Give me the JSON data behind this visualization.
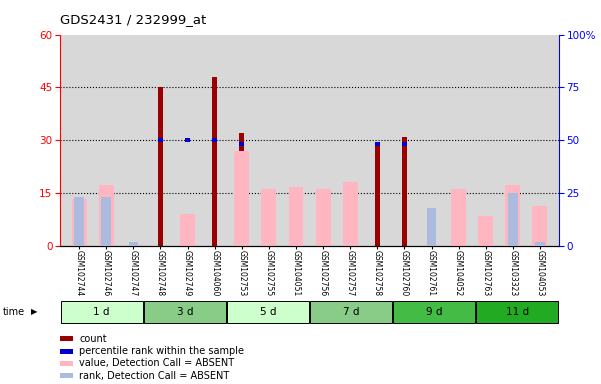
{
  "title": "GDS2431 / 232999_at",
  "samples": [
    "GSM102744",
    "GSM102746",
    "GSM102747",
    "GSM102748",
    "GSM102749",
    "GSM104060",
    "GSM102753",
    "GSM102755",
    "GSM104051",
    "GSM102756",
    "GSM102757",
    "GSM102758",
    "GSM102760",
    "GSM102761",
    "GSM104052",
    "GSM102763",
    "GSM103323",
    "GSM104053"
  ],
  "time_groups": [
    {
      "label": "1 d",
      "start": 0,
      "end": 3
    },
    {
      "label": "3 d",
      "start": 3,
      "end": 6
    },
    {
      "label": "5 d",
      "start": 6,
      "end": 9
    },
    {
      "label": "7 d",
      "start": 9,
      "end": 12
    },
    {
      "label": "9 d",
      "start": 12,
      "end": 15
    },
    {
      "label": "11 d",
      "start": 15,
      "end": 18
    }
  ],
  "group_colors": [
    "#ccffcc",
    "#88cc88",
    "#ccffcc",
    "#88cc88",
    "#44bb44",
    "#22aa22"
  ],
  "count": [
    0,
    0,
    0,
    45,
    0,
    48,
    32,
    0,
    0,
    0,
    0,
    29,
    31,
    0,
    0,
    0,
    0,
    0
  ],
  "percentile_rank": [
    0,
    0,
    0,
    30,
    30,
    30,
    29,
    0,
    0,
    0,
    0,
    29,
    29,
    0,
    0,
    0,
    0,
    0
  ],
  "value_absent": [
    22,
    29,
    0,
    0,
    15,
    0,
    45,
    27,
    28,
    27,
    30,
    0,
    0,
    0,
    27,
    14,
    29,
    19
  ],
  "rank_absent": [
    23,
    23,
    2,
    0,
    0,
    0,
    0,
    0,
    0,
    0,
    0,
    0,
    0,
    18,
    0,
    0,
    25,
    2
  ],
  "ylim_left": [
    0,
    60
  ],
  "ylim_right": [
    0,
    100
  ],
  "yticks_left": [
    0,
    15,
    30,
    45,
    60
  ],
  "yticks_right": [
    0,
    25,
    50,
    75,
    100
  ],
  "color_count": "#990000",
  "color_percentile": "#0000CC",
  "color_value_absent": "#FFB6C1",
  "color_rank_absent": "#aabbdd",
  "bg_plot": "#d8d8d8"
}
